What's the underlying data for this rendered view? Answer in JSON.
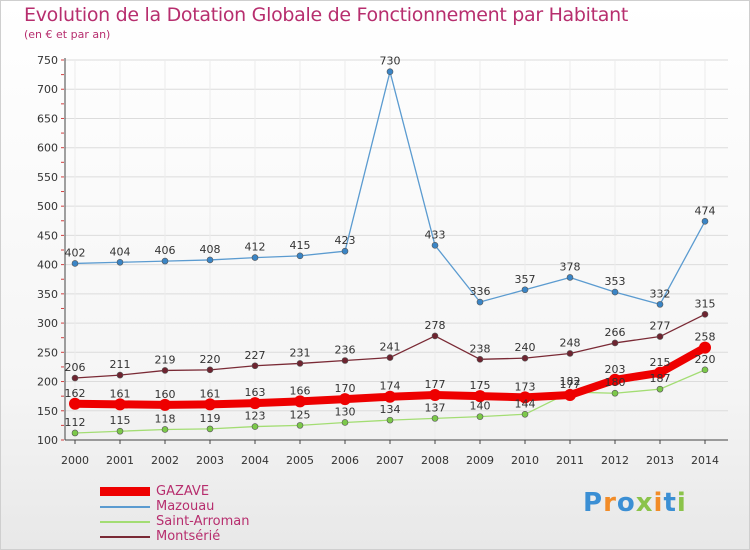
{
  "title": "Evolution de la Dotation Globale de Fonctionnement par Habitant",
  "subtitle": "(en € et par an)",
  "logo": {
    "text": "Proxiti",
    "colors": [
      "#3b8fd4",
      "#f28c28",
      "#3b8fd4",
      "#8bc34a",
      "#f28c28",
      "#3b8fd4",
      "#8bc34a"
    ]
  },
  "chart_data": {
    "type": "line",
    "title": "Evolution de la Dotation Globale de Fonctionnement par Habitant",
    "subtitle": "(en € et par an)",
    "xlabel": "",
    "ylabel": "",
    "ylim": [
      100,
      750
    ],
    "yticks": [
      100,
      150,
      200,
      250,
      300,
      350,
      400,
      450,
      500,
      550,
      600,
      650,
      700,
      750
    ],
    "x": [
      2000,
      2001,
      2002,
      2003,
      2004,
      2005,
      2006,
      2007,
      2008,
      2009,
      2010,
      2011,
      2012,
      2013,
      2014
    ],
    "grid": true,
    "legend_position": "bottom-left",
    "series": [
      {
        "name": "Mazouau",
        "color": "#5b9bd0",
        "point_color": "#3a85c6",
        "values": [
          402,
          404,
          406,
          408,
          412,
          415,
          423,
          730,
          433,
          336,
          357,
          378,
          353,
          332,
          474
        ]
      },
      {
        "name": "Montsérié",
        "color": "#7a2a35",
        "point_color": "#6e2430",
        "values": [
          206,
          211,
          219,
          220,
          227,
          231,
          236,
          241,
          278,
          238,
          240,
          248,
          266,
          277,
          315
        ]
      },
      {
        "name": "Saint-Arroman",
        "color": "#a3dd73",
        "point_color": "#7cc94a",
        "values": [
          112,
          115,
          118,
          119,
          123,
          125,
          130,
          134,
          137,
          140,
          144,
          182,
          180,
          187,
          220
        ]
      },
      {
        "name": "GAZAVE",
        "color": "#ee0000",
        "point_color": "#ee0000",
        "values": [
          162,
          161,
          160,
          161,
          163,
          166,
          170,
          174,
          177,
          175,
          173,
          177,
          203,
          215,
          258
        ]
      }
    ],
    "labels": [
      {
        "text": "402"
      },
      {
        "text": "404"
      },
      {
        "text": "406"
      },
      {
        "text": "408"
      },
      {
        "text": "412"
      },
      {
        "text": "415"
      },
      {
        "text": "423"
      },
      {
        "text": "730"
      },
      {
        "text": "433"
      },
      {
        "text": "336"
      },
      {
        "text": "357"
      },
      {
        "text": "378"
      },
      {
        "text": "353"
      },
      {
        "text": "332"
      },
      {
        "text": "474"
      },
      {
        "text": "206"
      },
      {
        "text": "211"
      },
      {
        "text": "219"
      },
      {
        "text": "220"
      },
      {
        "text": "227"
      },
      {
        "text": "231"
      },
      {
        "text": "236"
      },
      {
        "text": "241"
      },
      {
        "text": "278"
      },
      {
        "text": "238"
      },
      {
        "text": "240"
      },
      {
        "text": "248"
      },
      {
        "text": "266"
      },
      {
        "text": "277"
      },
      {
        "text": "315"
      },
      {
        "text": "112"
      },
      {
        "text": "115"
      },
      {
        "text": "118"
      },
      {
        "text": "119"
      },
      {
        "text": "123"
      },
      {
        "text": "125"
      },
      {
        "text": "130"
      },
      {
        "text": "134"
      },
      {
        "text": "137"
      },
      {
        "text": "140"
      },
      {
        "text": "144"
      },
      {
        "text": "182"
      },
      {
        "text": "180"
      },
      {
        "text": "187"
      },
      {
        "text": "220"
      },
      {
        "text": "162"
      },
      {
        "text": "161"
      },
      {
        "text": "160"
      },
      {
        "text": "161"
      },
      {
        "text": "163"
      },
      {
        "text": "166"
      },
      {
        "text": "170"
      },
      {
        "text": "174"
      },
      {
        "text": "177"
      },
      {
        "text": "175"
      },
      {
        "text": "173"
      },
      {
        "text": "177"
      },
      {
        "text": "203"
      },
      {
        "text": "215"
      },
      {
        "text": "258"
      }
    ]
  },
  "legend": [
    {
      "name": "GAZAVE",
      "color": "#ee0000",
      "weight": 9
    },
    {
      "name": "Mazouau",
      "color": "#5b9bd0",
      "weight": 2
    },
    {
      "name": "Saint-Arroman",
      "color": "#a3dd73",
      "weight": 2
    },
    {
      "name": "Montsérié",
      "color": "#7a2a35",
      "weight": 2
    }
  ]
}
